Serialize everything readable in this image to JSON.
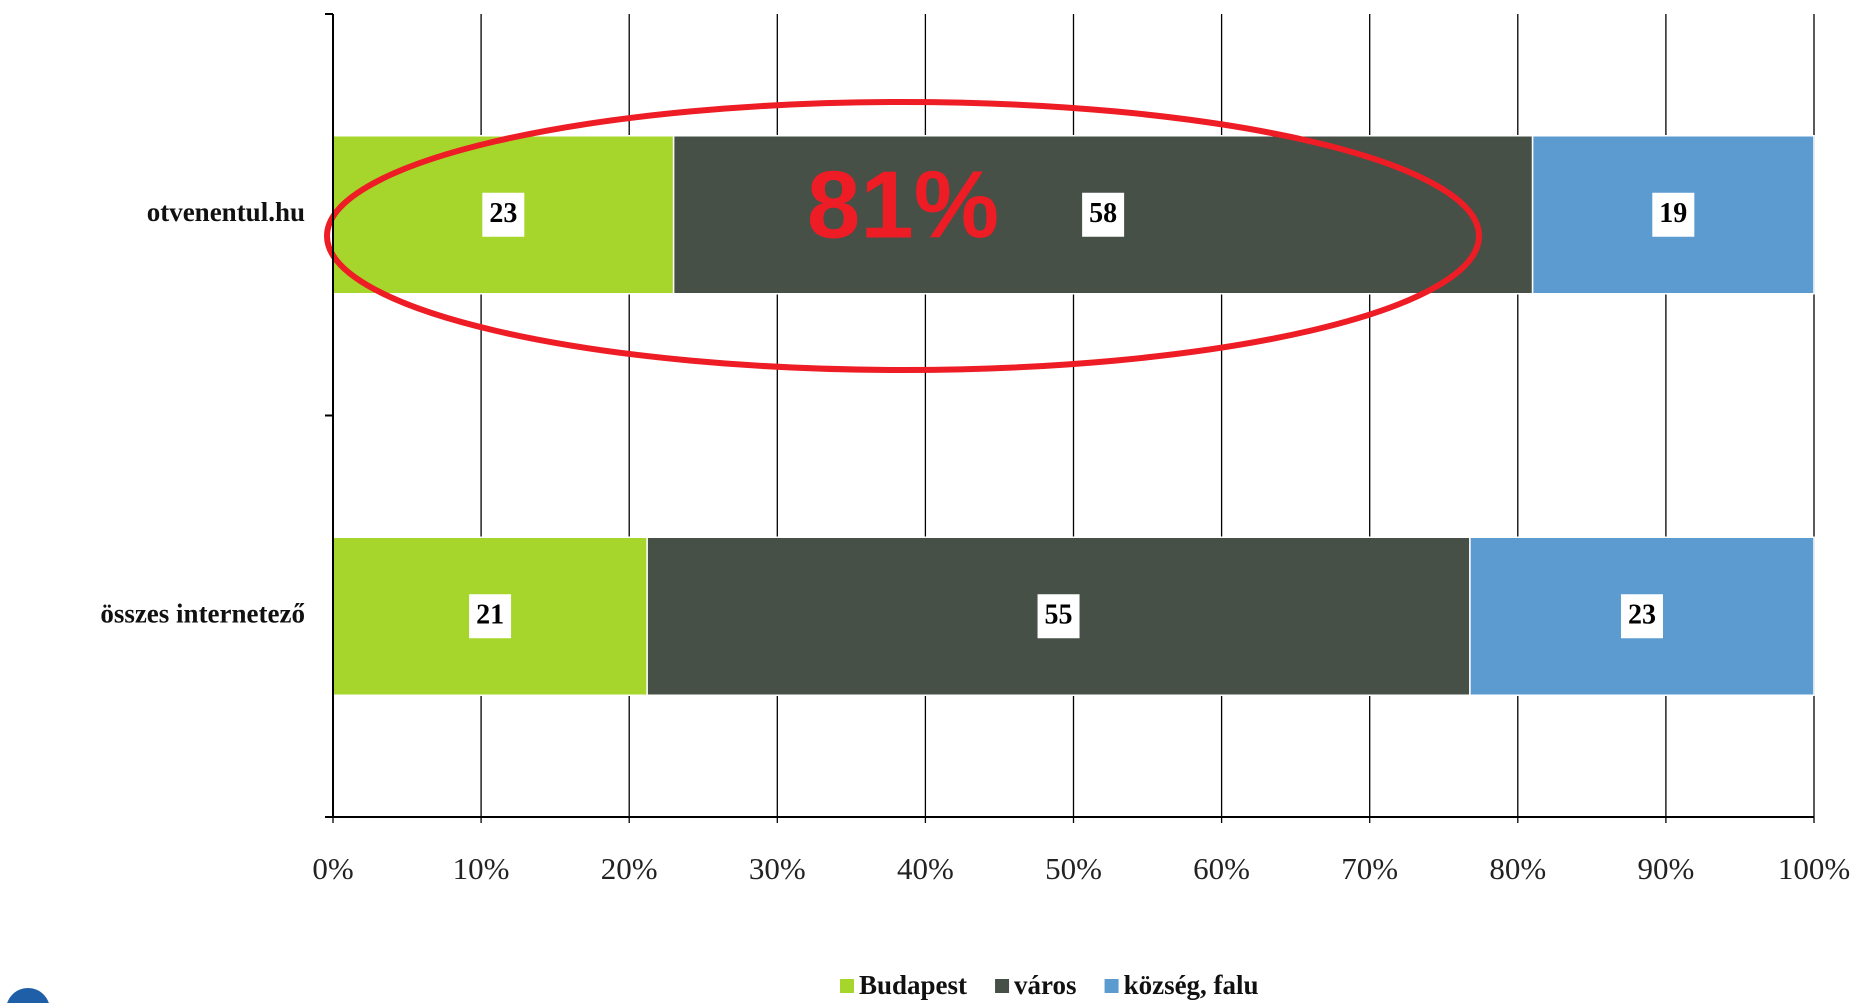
{
  "chart_data": {
    "type": "bar",
    "orientation": "horizontal",
    "stack": "percent",
    "categories": [
      "otvenentul.hu",
      "összes internetező"
    ],
    "series": [
      {
        "name": "Budapest",
        "color": "#a6d62b",
        "values": [
          23,
          21
        ]
      },
      {
        "name": "város",
        "color": "#475047",
        "values": [
          58,
          55
        ]
      },
      {
        "name": "község, falu",
        "color": "#5b9bd0",
        "values": [
          19,
          23
        ]
      }
    ],
    "xlim": [
      0,
      100
    ],
    "xticks": [
      {
        "value": 0,
        "label": "0%"
      },
      {
        "value": 10,
        "label": "10%"
      },
      {
        "value": 20,
        "label": "20%"
      },
      {
        "value": 30,
        "label": "30%"
      },
      {
        "value": 40,
        "label": "40%"
      },
      {
        "value": 50,
        "label": "50%"
      },
      {
        "value": 60,
        "label": "60%"
      },
      {
        "value": 70,
        "label": "70%"
      },
      {
        "value": 80,
        "label": "80%"
      },
      {
        "value": 90,
        "label": "90%"
      },
      {
        "value": 100,
        "label": "100%"
      }
    ],
    "grid": true,
    "legend": "bottom",
    "annotation": "81%"
  }
}
